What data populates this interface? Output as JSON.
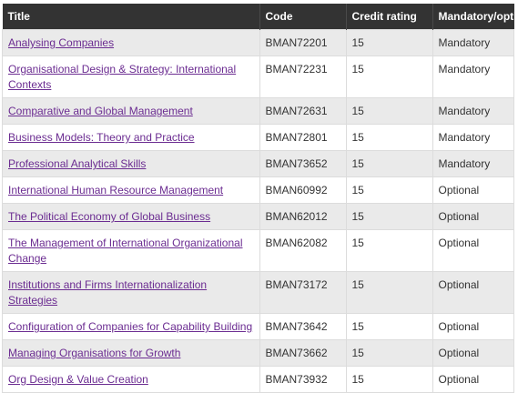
{
  "table": {
    "headers": {
      "title": "Title",
      "code": "Code",
      "credit": "Credit rating",
      "mandatory": "Mandatory/optional"
    },
    "rows": [
      {
        "title": "Analysing Companies",
        "code": "BMAN72201",
        "credit": "15",
        "mandatory": "Mandatory"
      },
      {
        "title": "Organisational Design & Strategy: International Contexts",
        "code": "BMAN72231",
        "credit": "15",
        "mandatory": "Mandatory"
      },
      {
        "title": "Comparative and Global Management",
        "code": "BMAN72631",
        "credit": "15",
        "mandatory": "Mandatory"
      },
      {
        "title": "Business Models: Theory and Practice",
        "code": "BMAN72801",
        "credit": "15",
        "mandatory": "Mandatory"
      },
      {
        "title": "Professional Analytical Skills",
        "code": "BMAN73652",
        "credit": "15",
        "mandatory": "Mandatory"
      },
      {
        "title": "International Human Resource Management",
        "code": "BMAN60992",
        "credit": "15",
        "mandatory": "Optional"
      },
      {
        "title": "The Political Economy of Global Business",
        "code": "BMAN62012",
        "credit": "15",
        "mandatory": "Optional"
      },
      {
        "title": "The Management of International Organizational Change",
        "code": "BMAN62082",
        "credit": "15",
        "mandatory": "Optional"
      },
      {
        "title": "Institutions and Firms Internationalization Strategies",
        "code": "BMAN73172",
        "credit": "15",
        "mandatory": "Optional"
      },
      {
        "title": "Configuration of Companies for Capability Building",
        "code": "BMAN73642",
        "credit": "15",
        "mandatory": "Optional"
      },
      {
        "title": "Managing Organisations for Growth",
        "code": "BMAN73662",
        "credit": "15",
        "mandatory": "Optional"
      },
      {
        "title": "Org Design & Value Creation",
        "code": "BMAN73932",
        "credit": "15",
        "mandatory": "Optional"
      }
    ]
  },
  "colors": {
    "header_bg": "#333333",
    "link": "#6b2c91",
    "row_alt": "#eaeaea"
  }
}
